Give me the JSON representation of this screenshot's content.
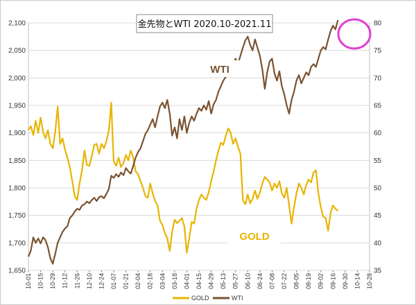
{
  "chart_data": {
    "type": "line",
    "title": "金先物とWTI 2020.10-2021.11",
    "x_tick_labels": [
      "10-01",
      "10-15",
      "10-29",
      "11-12",
      "11-26",
      "12-10",
      "12-24",
      "01-07",
      "01-21",
      "02-04",
      "02-18",
      "03-04",
      "03-18",
      "04-01",
      "04-15",
      "04-29",
      "05-13",
      "05-27",
      "06-10",
      "06-24",
      "07-08",
      "07-22",
      "08-05",
      "08-19",
      "09-02",
      "09-16",
      "09-30",
      "10-14",
      "10-28"
    ],
    "y_left": {
      "range": [
        1650,
        2100
      ],
      "ticks": [
        "1,650",
        "1,700",
        "1,750",
        "1,800",
        "1,850",
        "1,900",
        "1,950",
        "2,000",
        "2,050",
        "2,100"
      ]
    },
    "y_right": {
      "range": [
        35,
        80
      ],
      "ticks": [
        "35",
        "40",
        "45",
        "50",
        "55",
        "60",
        "65",
        "70",
        "75",
        "80"
      ]
    },
    "grid": "horizontal",
    "series": [
      {
        "name": "GOLD",
        "axis": "left",
        "color": "#E8B400",
        "in_chart_label": "GOLD",
        "values": [
          [
            0,
            1905
          ],
          [
            2,
            1912
          ],
          [
            4,
            1896
          ],
          [
            6,
            1922
          ],
          [
            8,
            1900
          ],
          [
            10,
            1928
          ],
          [
            12,
            1902
          ],
          [
            14,
            1890
          ],
          [
            16,
            1905
          ],
          [
            18,
            1880
          ],
          [
            20,
            1872
          ],
          [
            22,
            1902
          ],
          [
            24,
            1948
          ],
          [
            26,
            1880
          ],
          [
            28,
            1890
          ],
          [
            30,
            1870
          ],
          [
            32,
            1855
          ],
          [
            34,
            1838
          ],
          [
            36,
            1812
          ],
          [
            38,
            1785
          ],
          [
            40,
            1778
          ],
          [
            42,
            1808
          ],
          [
            44,
            1832
          ],
          [
            46,
            1868
          ],
          [
            48,
            1842
          ],
          [
            50,
            1840
          ],
          [
            52,
            1858
          ],
          [
            54,
            1878
          ],
          [
            56,
            1880
          ],
          [
            58,
            1862
          ],
          [
            60,
            1880
          ],
          [
            62,
            1872
          ],
          [
            64,
            1885
          ],
          [
            66,
            1905
          ],
          [
            68,
            1955
          ],
          [
            69,
            1900
          ],
          [
            70,
            1848
          ],
          [
            72,
            1840
          ],
          [
            74,
            1855
          ],
          [
            76,
            1838
          ],
          [
            78,
            1845
          ],
          [
            80,
            1860
          ],
          [
            82,
            1850
          ],
          [
            84,
            1868
          ],
          [
            86,
            1855
          ],
          [
            88,
            1830
          ],
          [
            90,
            1825
          ],
          [
            92,
            1812
          ],
          [
            94,
            1800
          ],
          [
            96,
            1785
          ],
          [
            98,
            1782
          ],
          [
            100,
            1808
          ],
          [
            102,
            1790
          ],
          [
            104,
            1776
          ],
          [
            106,
            1768
          ],
          [
            108,
            1740
          ],
          [
            110,
            1732
          ],
          [
            112,
            1718
          ],
          [
            114,
            1708
          ],
          [
            116,
            1685
          ],
          [
            118,
            1720
          ],
          [
            120,
            1742
          ],
          [
            122,
            1736
          ],
          [
            124,
            1740
          ],
          [
            126,
            1745
          ],
          [
            128,
            1730
          ],
          [
            130,
            1682
          ],
          [
            132,
            1708
          ],
          [
            134,
            1738
          ],
          [
            136,
            1735
          ],
          [
            138,
            1762
          ],
          [
            140,
            1778
          ],
          [
            142,
            1788
          ],
          [
            144,
            1782
          ],
          [
            146,
            1778
          ],
          [
            148,
            1792
          ],
          [
            150,
            1812
          ],
          [
            152,
            1830
          ],
          [
            154,
            1850
          ],
          [
            156,
            1868
          ],
          [
            158,
            1882
          ],
          [
            160,
            1878
          ],
          [
            162,
            1895
          ],
          [
            164,
            1908
          ],
          [
            166,
            1900
          ],
          [
            168,
            1880
          ],
          [
            170,
            1890
          ],
          [
            172,
            1875
          ],
          [
            174,
            1862
          ],
          [
            176,
            1778
          ],
          [
            178,
            1770
          ],
          [
            180,
            1788
          ],
          [
            182,
            1772
          ],
          [
            184,
            1780
          ],
          [
            186,
            1795
          ],
          [
            188,
            1780
          ],
          [
            190,
            1792
          ],
          [
            192,
            1808
          ],
          [
            194,
            1820
          ],
          [
            196,
            1815
          ],
          [
            198,
            1810
          ],
          [
            200,
            1795
          ],
          [
            202,
            1808
          ],
          [
            204,
            1800
          ],
          [
            206,
            1812
          ],
          [
            208,
            1790
          ],
          [
            210,
            1782
          ],
          [
            212,
            1800
          ],
          [
            214,
            1768
          ],
          [
            216,
            1735
          ],
          [
            218,
            1765
          ],
          [
            220,
            1790
          ],
          [
            222,
            1808
          ],
          [
            224,
            1800
          ],
          [
            226,
            1788
          ],
          [
            228,
            1805
          ],
          [
            230,
            1815
          ],
          [
            232,
            1810
          ],
          [
            234,
            1828
          ],
          [
            236,
            1832
          ],
          [
            238,
            1790
          ],
          [
            240,
            1765
          ],
          [
            242,
            1748
          ],
          [
            244,
            1745
          ],
          [
            246,
            1722
          ],
          [
            248,
            1755
          ],
          [
            250,
            1768
          ],
          [
            252,
            1762
          ],
          [
            254,
            1758
          ]
        ]
      },
      {
        "name": "WTI",
        "axis": "right",
        "color": "#7A5230",
        "in_chart_label": "WTI",
        "values": [
          [
            0,
            37.5
          ],
          [
            2,
            38.6
          ],
          [
            4,
            41.0
          ],
          [
            6,
            40.0
          ],
          [
            8,
            40.8
          ],
          [
            10,
            39.9
          ],
          [
            12,
            41.0
          ],
          [
            14,
            40.5
          ],
          [
            16,
            39.2
          ],
          [
            18,
            37.2
          ],
          [
            20,
            36.2
          ],
          [
            22,
            38.0
          ],
          [
            24,
            40.0
          ],
          [
            26,
            41.0
          ],
          [
            28,
            42.0
          ],
          [
            30,
            42.6
          ],
          [
            32,
            43.0
          ],
          [
            34,
            44.5
          ],
          [
            36,
            45.0
          ],
          [
            38,
            45.7
          ],
          [
            40,
            46.2
          ],
          [
            42,
            46.0
          ],
          [
            44,
            46.8
          ],
          [
            46,
            47.0
          ],
          [
            48,
            47.5
          ],
          [
            50,
            47.2
          ],
          [
            52,
            47.8
          ],
          [
            54,
            48.2
          ],
          [
            56,
            47.6
          ],
          [
            58,
            48.3
          ],
          [
            60,
            48.5
          ],
          [
            62,
            48.1
          ],
          [
            64,
            48.9
          ],
          [
            66,
            49.8
          ],
          [
            68,
            52.2
          ],
          [
            70,
            51.8
          ],
          [
            72,
            52.5
          ],
          [
            74,
            52.0
          ],
          [
            76,
            52.8
          ],
          [
            78,
            52.3
          ],
          [
            80,
            53.6
          ],
          [
            82,
            53.0
          ],
          [
            84,
            52.6
          ],
          [
            86,
            54.0
          ],
          [
            88,
            55.5
          ],
          [
            90,
            56.5
          ],
          [
            92,
            57.2
          ],
          [
            94,
            58.5
          ],
          [
            96,
            59.8
          ],
          [
            98,
            60.5
          ],
          [
            100,
            61.5
          ],
          [
            102,
            62.5
          ],
          [
            104,
            61.0
          ],
          [
            106,
            63.0
          ],
          [
            108,
            64.8
          ],
          [
            110,
            65.5
          ],
          [
            112,
            64.5
          ],
          [
            114,
            66.0
          ],
          [
            116,
            63.5
          ],
          [
            118,
            59.5
          ],
          [
            120,
            61.0
          ],
          [
            122,
            59.0
          ],
          [
            124,
            62.5
          ],
          [
            126,
            60.5
          ],
          [
            128,
            63.0
          ],
          [
            130,
            60.0
          ],
          [
            132,
            61.8
          ],
          [
            134,
            63.0
          ],
          [
            136,
            62.2
          ],
          [
            138,
            63.5
          ],
          [
            140,
            64.5
          ],
          [
            142,
            64.0
          ],
          [
            144,
            65.0
          ],
          [
            146,
            64.2
          ],
          [
            148,
            65.8
          ],
          [
            150,
            63.5
          ],
          [
            152,
            65.2
          ],
          [
            154,
            66.0
          ],
          [
            156,
            67.5
          ],
          [
            158,
            68.5
          ],
          [
            160,
            69.5
          ],
          [
            162,
            70.2
          ],
          [
            164,
            71.0
          ],
          [
            166,
            70.5
          ],
          [
            168,
            72.0
          ],
          [
            170,
            73.5
          ],
          [
            172,
            72.5
          ],
          [
            174,
            74.0
          ],
          [
            176,
            75.5
          ],
          [
            178,
            76.8
          ],
          [
            180,
            77.5
          ],
          [
            182,
            76.0
          ],
          [
            184,
            75.0
          ],
          [
            186,
            77.0
          ],
          [
            188,
            75.5
          ],
          [
            190,
            74.0
          ],
          [
            192,
            71.5
          ],
          [
            194,
            68.0
          ],
          [
            196,
            71.0
          ],
          [
            198,
            73.0
          ],
          [
            200,
            73.5
          ],
          [
            202,
            70.8
          ],
          [
            204,
            69.5
          ],
          [
            206,
            71.2
          ],
          [
            208,
            68.5
          ],
          [
            210,
            67.0
          ],
          [
            212,
            65.0
          ],
          [
            214,
            63.5
          ],
          [
            216,
            66.0
          ],
          [
            218,
            67.5
          ],
          [
            220,
            69.5
          ],
          [
            222,
            70.5
          ],
          [
            224,
            69.0
          ],
          [
            226,
            70.0
          ],
          [
            228,
            71.0
          ],
          [
            230,
            70.5
          ],
          [
            232,
            72.0
          ],
          [
            234,
            72.5
          ],
          [
            236,
            72.0
          ],
          [
            238,
            73.5
          ],
          [
            240,
            75.0
          ],
          [
            242,
            75.6
          ],
          [
            244,
            75.2
          ],
          [
            246,
            77.0
          ],
          [
            248,
            78.5
          ],
          [
            250,
            79.5
          ],
          [
            252,
            78.8
          ],
          [
            254,
            80.5
          ]
        ]
      }
    ],
    "legend": {
      "placement": "bottom-center",
      "entries": [
        "GOLD",
        "WTI"
      ]
    },
    "annotation": {
      "type": "circle",
      "color": "#E040D0",
      "around": "latest WTI high"
    }
  }
}
